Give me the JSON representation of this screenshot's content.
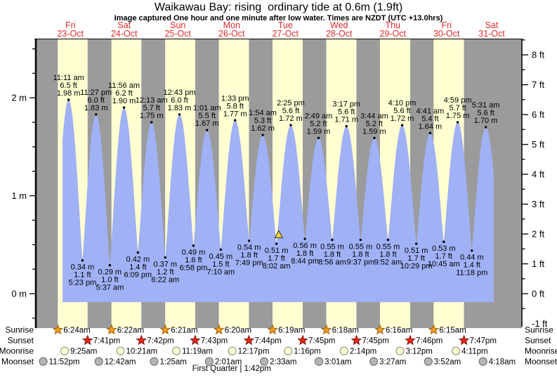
{
  "title": "Waikawau Bay: rising  ordinary tide at 0.6m (1.9ft)",
  "subtitle": "Image captured One hour and one minute after low water. Times are NZDT (UTC +13.0hrs)",
  "colors": {
    "night_band": "#9b9b9b",
    "day_band": "#ffffd2",
    "tide_fill": "#a0b1f6",
    "day_label_red": "#e32b2b",
    "text": "#000000",
    "marker_yellow": "#f2d838",
    "marker_outline": "#444444",
    "sunrise_icon": "#f09d28",
    "sunrise_icon_outline": "#a05a00",
    "sunset_icon": "#e8281c",
    "sunset_icon_outline": "#7d0f06",
    "moonrise_icon": "#ffffcc",
    "moonrise_icon_outline": "#999999",
    "moonset_icon": "#b5b5b5",
    "moonset_icon_outline": "#777777"
  },
  "chart_data": {
    "type": "area",
    "title": "Waikawau Bay: rising  ordinary tide at 0.6m (1.9ft)",
    "xlabel": "days (Fri 23-Oct to Sat 31-Oct)",
    "ylabel_left": "metres",
    "ylabel_right": "feet",
    "ylim_m": [
      -0.35,
      2.6
    ],
    "grid": false,
    "days": [
      {
        "dow": "Fri",
        "date": "23-Oct"
      },
      {
        "dow": "Sat",
        "date": "24-Oct"
      },
      {
        "dow": "Sun",
        "date": "25-Oct"
      },
      {
        "dow": "Mon",
        "date": "26-Oct"
      },
      {
        "dow": "Tue",
        "date": "27-Oct"
      },
      {
        "dow": "Wed",
        "date": "28-Oct"
      },
      {
        "dow": "Thu",
        "date": "29-Oct"
      },
      {
        "dow": "Fri",
        "date": "30-Oct"
      },
      {
        "dow": "Sat",
        "date": "31-Oct"
      }
    ],
    "axis_left_major": [
      {
        "value": 0,
        "label": "0 m"
      },
      {
        "value": 1,
        "label": "1 m"
      },
      {
        "value": 2,
        "label": "2 m"
      }
    ],
    "axis_left_minor_step": 0.25,
    "axis_left_minor_range": [
      -0.25,
      2.5
    ],
    "axis_right_major": [
      {
        "value": -1,
        "label": "-1 ft"
      },
      {
        "value": 0,
        "label": "0 ft"
      },
      {
        "value": 1,
        "label": "1 ft"
      },
      {
        "value": 2,
        "label": "2 ft"
      },
      {
        "value": 3,
        "label": "3 ft"
      },
      {
        "value": 4,
        "label": "4 ft"
      },
      {
        "value": 5,
        "label": "5 ft"
      },
      {
        "value": 6,
        "label": "6 ft"
      },
      {
        "value": 7,
        "label": "7 ft"
      },
      {
        "value": 8,
        "label": "8 ft"
      }
    ],
    "axis_right_minor_step": 0.5,
    "axis_right_minor_range": [
      -0.5,
      8.5
    ],
    "tide_events": [
      {
        "type": "high",
        "t": 0.466,
        "height_m": 1.98,
        "labels": [
          "11:11 am",
          "6.5 ft",
          "1.98 m"
        ]
      },
      {
        "type": "low",
        "t": 0.7243,
        "height_m": 0.34,
        "labels": [
          "0.34 m",
          "1.1 ft",
          "5:23 pm"
        ]
      },
      {
        "type": "high",
        "t": 0.9771,
        "height_m": 1.83,
        "labels": [
          "11:27 pm",
          "6.0 ft",
          "1.83 m"
        ]
      },
      {
        "type": "low",
        "t": 1.234,
        "height_m": 0.29,
        "labels": [
          "0.29 m",
          "1.0 ft",
          "5:37 am"
        ]
      },
      {
        "type": "high",
        "t": 1.4972,
        "height_m": 1.9,
        "labels": [
          "11:56 am",
          "6.2 ft",
          "1.90 m"
        ]
      },
      {
        "type": "low",
        "t": 1.7563,
        "height_m": 0.42,
        "labels": [
          "0.42 m",
          "1.4 ft",
          "6:09 pm"
        ]
      },
      {
        "type": "high",
        "t": 2.009,
        "height_m": 1.75,
        "labels": [
          "12:13 am",
          "5.7 ft",
          "1.75 m"
        ]
      },
      {
        "type": "low",
        "t": 2.2653,
        "height_m": 0.37,
        "labels": [
          "0.37 m",
          "1.2 ft",
          "6:22 am"
        ]
      },
      {
        "type": "high",
        "t": 2.5299,
        "height_m": 1.83,
        "labels": [
          "12:43 pm",
          "6.0 ft",
          "1.83 m"
        ]
      },
      {
        "type": "low",
        "t": 2.7903,
        "height_m": 0.49,
        "labels": [
          "0.49 m",
          "1.6 ft",
          "6:58 pm"
        ]
      },
      {
        "type": "high",
        "t": 3.0424,
        "height_m": 1.67,
        "labels": [
          "1:01 am",
          "5.5 ft",
          "1.67 m"
        ]
      },
      {
        "type": "low",
        "t": 3.2986,
        "height_m": 0.45,
        "labels": [
          "0.45 m",
          "1.5 ft",
          "7:10 am"
        ]
      },
      {
        "type": "high",
        "t": 3.5646,
        "height_m": 1.77,
        "labels": [
          "1:33 pm",
          "5.8 ft",
          "1.77 m"
        ]
      },
      {
        "type": "low",
        "t": 3.8257,
        "height_m": 0.54,
        "labels": [
          "0.54 m",
          "1.8 ft",
          "7:49 pm"
        ]
      },
      {
        "type": "high",
        "t": 4.0792,
        "height_m": 1.62,
        "labels": [
          "1:54 am",
          "5.3 ft",
          "1.62 m"
        ]
      },
      {
        "type": "low",
        "t": 4.3347,
        "height_m": 0.51,
        "labels": [
          "0.51 m",
          "1.7 ft",
          "8:02 am"
        ]
      },
      {
        "type": "high",
        "t": 4.6007,
        "height_m": 1.72,
        "labels": [
          "2:25 pm",
          "5.6 ft",
          "1.72 m"
        ]
      },
      {
        "type": "low",
        "t": 4.8639,
        "height_m": 0.56,
        "labels": [
          "0.56 m",
          "1.8 ft",
          "8:44 pm"
        ]
      },
      {
        "type": "high",
        "t": 5.1174,
        "height_m": 1.59,
        "labels": [
          "2:49 am",
          "5.2 ft",
          "1.59 m"
        ]
      },
      {
        "type": "low",
        "t": 5.3722,
        "height_m": 0.55,
        "labels": [
          "0.55 m",
          "1.8 ft",
          "8:56 am"
        ]
      },
      {
        "type": "high",
        "t": 5.6368,
        "height_m": 1.71,
        "labels": [
          "3:17 pm",
          "5.6 ft",
          "1.71 m"
        ]
      },
      {
        "type": "low",
        "t": 5.9007,
        "height_m": 0.55,
        "labels": [
          "0.55 m",
          "1.8 ft",
          "9:37 pm"
        ]
      },
      {
        "type": "high",
        "t": 6.1556,
        "height_m": 1.59,
        "labels": [
          "3:44 am",
          "5.2 ft",
          "1.59 m"
        ]
      },
      {
        "type": "low",
        "t": 6.4111,
        "height_m": 0.55,
        "labels": [
          "0.55 m",
          "1.8 ft",
          "9:52 am"
        ]
      },
      {
        "type": "high",
        "t": 6.6736,
        "height_m": 1.72,
        "labels": [
          "4:10 pm",
          "5.6 ft",
          "1.72 m"
        ]
      },
      {
        "type": "low",
        "t": 6.9368,
        "height_m": 0.51,
        "labels": [
          "0.51 m",
          "1.7 ft",
          "10:29 pm"
        ]
      },
      {
        "type": "high",
        "t": 7.1951,
        "height_m": 1.64,
        "labels": [
          "4:41 am",
          "5.4 ft",
          "1.64 m"
        ]
      },
      {
        "type": "low",
        "t": 7.4479,
        "height_m": 0.53,
        "labels": [
          "0.53 m",
          "1.7 ft",
          "10:45 am"
        ]
      },
      {
        "type": "high",
        "t": 7.7076,
        "height_m": 1.75,
        "labels": [
          "4:59 pm",
          "5.7 ft",
          "1.75 m"
        ]
      },
      {
        "type": "low",
        "t": 7.9708,
        "height_m": 0.44,
        "labels": [
          "0.44 m",
          "1.4 ft",
          "11:18 pm"
        ]
      },
      {
        "type": "high",
        "t": 8.2299,
        "height_m": 1.7,
        "labels": [
          "5:31 am",
          "5.6 ft",
          "1.70 m"
        ]
      }
    ],
    "pre_event": {
      "type": "low",
      "t": 0.207,
      "height_m": 0.3
    },
    "post_event": {
      "type": "low",
      "t": 8.49,
      "height_m": 0.5
    },
    "window": {
      "t_start": 0.353,
      "t_end": 8.379,
      "base_m": -0.086
    },
    "current_marker": {
      "t": 4.377,
      "height_m": 0.6,
      "note": "rising tide at 0.6m"
    }
  },
  "astronomy": {
    "rows": [
      {
        "label": "Sunrise",
        "icon": "sunrise-icon",
        "events": [
          {
            "time": "6:24am",
            "t": 0.2667
          },
          {
            "time": "6:22am",
            "t": 1.2653
          },
          {
            "time": "6:21am",
            "t": 2.2646
          },
          {
            "time": "6:20am",
            "t": 3.2639
          },
          {
            "time": "6:19am",
            "t": 4.2632
          },
          {
            "time": "6:18am",
            "t": 5.2625
          },
          {
            "time": "6:16am",
            "t": 6.2611
          },
          {
            "time": "6:15am",
            "t": 7.2604
          }
        ]
      },
      {
        "label": "Sunset",
        "icon": "sunset-icon",
        "events": [
          {
            "time": "7:41pm",
            "t": 0.8201
          },
          {
            "time": "7:42pm",
            "t": 1.8208
          },
          {
            "time": "7:43pm",
            "t": 2.8215
          },
          {
            "time": "7:44pm",
            "t": 3.8222
          },
          {
            "time": "7:45pm",
            "t": 4.8229
          },
          {
            "time": "7:45pm",
            "t": 5.8229
          },
          {
            "time": "7:46pm",
            "t": 6.8236
          },
          {
            "time": "7:47pm",
            "t": 7.8243
          }
        ]
      },
      {
        "label": "Moonrise",
        "icon": "moonrise-icon",
        "events": [
          {
            "time": "9:25am",
            "t": 0.3924
          },
          {
            "time": "10:21am",
            "t": 1.4313
          },
          {
            "time": "11:19am",
            "t": 2.4715
          },
          {
            "time": "12:17pm",
            "t": 3.5118
          },
          {
            "time": "1:16pm",
            "t": 4.5528
          },
          {
            "time": "2:14pm",
            "t": 5.5931
          },
          {
            "time": "3:12pm",
            "t": 6.6333
          },
          {
            "time": "4:11pm",
            "t": 7.6743
          }
        ]
      },
      {
        "label": "Moonset",
        "icon": "moonset-icon",
        "events": [
          {
            "time": "11:52pm",
            "t": -0.0056
          },
          {
            "time": "12:42am",
            "t": 1.0292
          },
          {
            "time": "1:25am",
            "t": 2.059
          },
          {
            "time": "2:01am",
            "t": 3.084
          },
          {
            "time": "2:33am",
            "t": 4.1063
          },
          {
            "time": "3:01am",
            "t": 5.1257
          },
          {
            "time": "3:27am",
            "t": 6.1438
          },
          {
            "time": "3:52am",
            "t": 7.1611
          },
          {
            "time": "4:18am",
            "t": 8.1792
          }
        ]
      }
    ],
    "moon_phase": {
      "text": "First Quarter | 1:42pm",
      "t": 3.5
    }
  }
}
